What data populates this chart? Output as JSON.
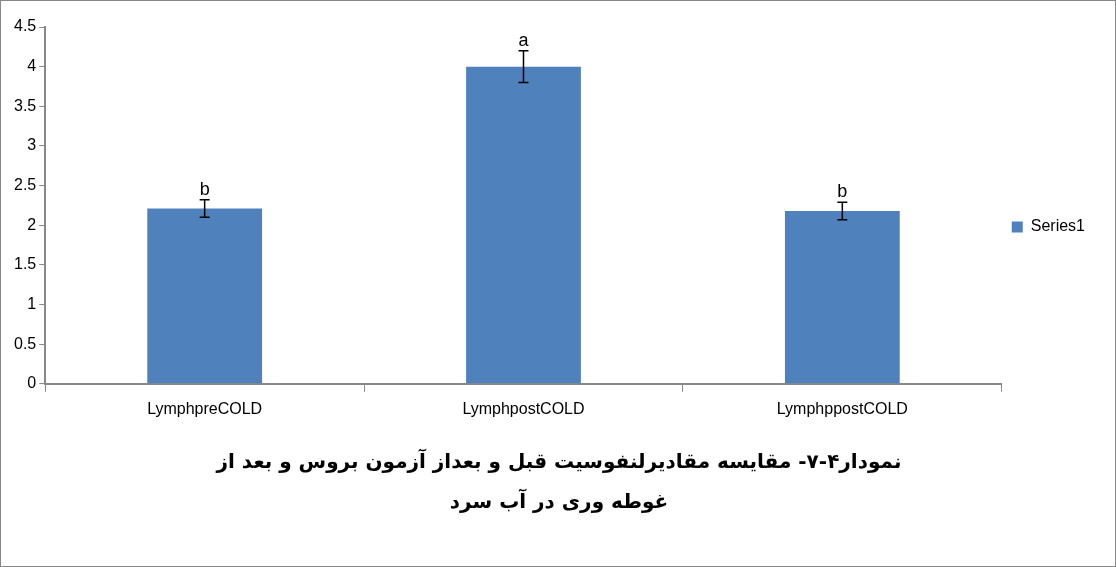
{
  "chart_data": {
    "type": "bar",
    "title": "نمودار۴-۷- مقایسه مقادیرلنفوسیت قبل و  بعداز آزمون بروس و بعد از غوطه وری در آب سرد",
    "categories": [
      "LymphpreCOLD",
      "LymphpostCOLD",
      "LymphppostCOLD"
    ],
    "series": [
      {
        "name": "Series1",
        "color": "#4f81bd",
        "values": [
          2.21,
          4.0,
          2.18
        ],
        "errors": [
          0.11,
          0.2,
          0.11
        ]
      }
    ],
    "ylim": [
      0,
      4.5
    ],
    "yticks": [
      0,
      0.5,
      1,
      1.5,
      2,
      2.5,
      3,
      3.5,
      4,
      4.5
    ],
    "grid": false,
    "legend": "right",
    "annotations": [
      {
        "text": "b",
        "x": "LymphpreCOLD",
        "y": 2.32
      },
      {
        "text": "a",
        "x": "LymphpostCOLD",
        "y": 4.2
      },
      {
        "text": "b",
        "x": "LymphppostCOLD",
        "y": 2.29
      }
    ]
  }
}
